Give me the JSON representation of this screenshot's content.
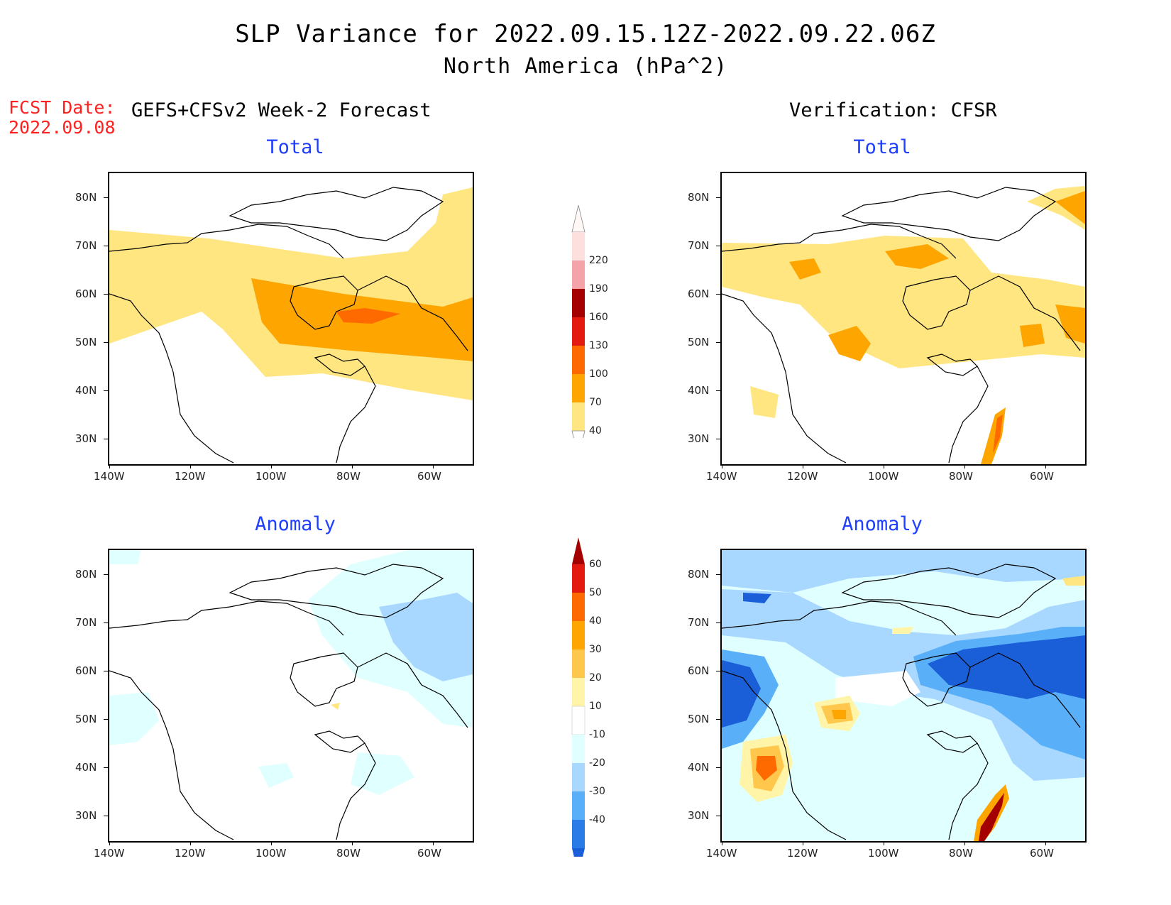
{
  "header": {
    "title": "SLP Variance for 2022.09.15.12Z-2022.09.22.06Z",
    "subtitle": "North America (hPa^2)",
    "fcst_label": "FCST Date:",
    "fcst_date": "2022.09.08",
    "left_heading": "GEFS+CFSv2 Week-2 Forecast",
    "right_heading": "Verification: CFSR"
  },
  "panels": {
    "forecast_total": {
      "title": "Total"
    },
    "forecast_anomaly": {
      "title": "Anomaly"
    },
    "verif_total": {
      "title": "Total"
    },
    "verif_anomaly": {
      "title": "Anomaly"
    }
  },
  "axes": {
    "lat_labels": [
      "80N",
      "70N",
      "60N",
      "50N",
      "40N",
      "30N"
    ],
    "lon_labels": [
      "140W",
      "120W",
      "100W",
      "80W",
      "60W"
    ]
  },
  "colorbars": {
    "total": {
      "labels": [
        "220",
        "190",
        "160",
        "130",
        "100",
        "70",
        "40"
      ],
      "colors": [
        "#fde0dd",
        "#f4a3a8",
        "#a50000",
        "#e31a10",
        "#ff6a00",
        "#ffa500",
        "#ffe680"
      ]
    },
    "anomaly": {
      "labels": [
        "60",
        "50",
        "40",
        "30",
        "20",
        "10",
        "-10",
        "-20",
        "-30",
        "-40"
      ],
      "colors": [
        "#a50000",
        "#e31a10",
        "#ff6a00",
        "#ffa500",
        "#ffc84d",
        "#fff4a8",
        "#ffffff",
        "#e0ffff",
        "#a8d8ff",
        "#5ab0f8",
        "#2a7ae8",
        "#1a5ed8"
      ]
    }
  }
}
